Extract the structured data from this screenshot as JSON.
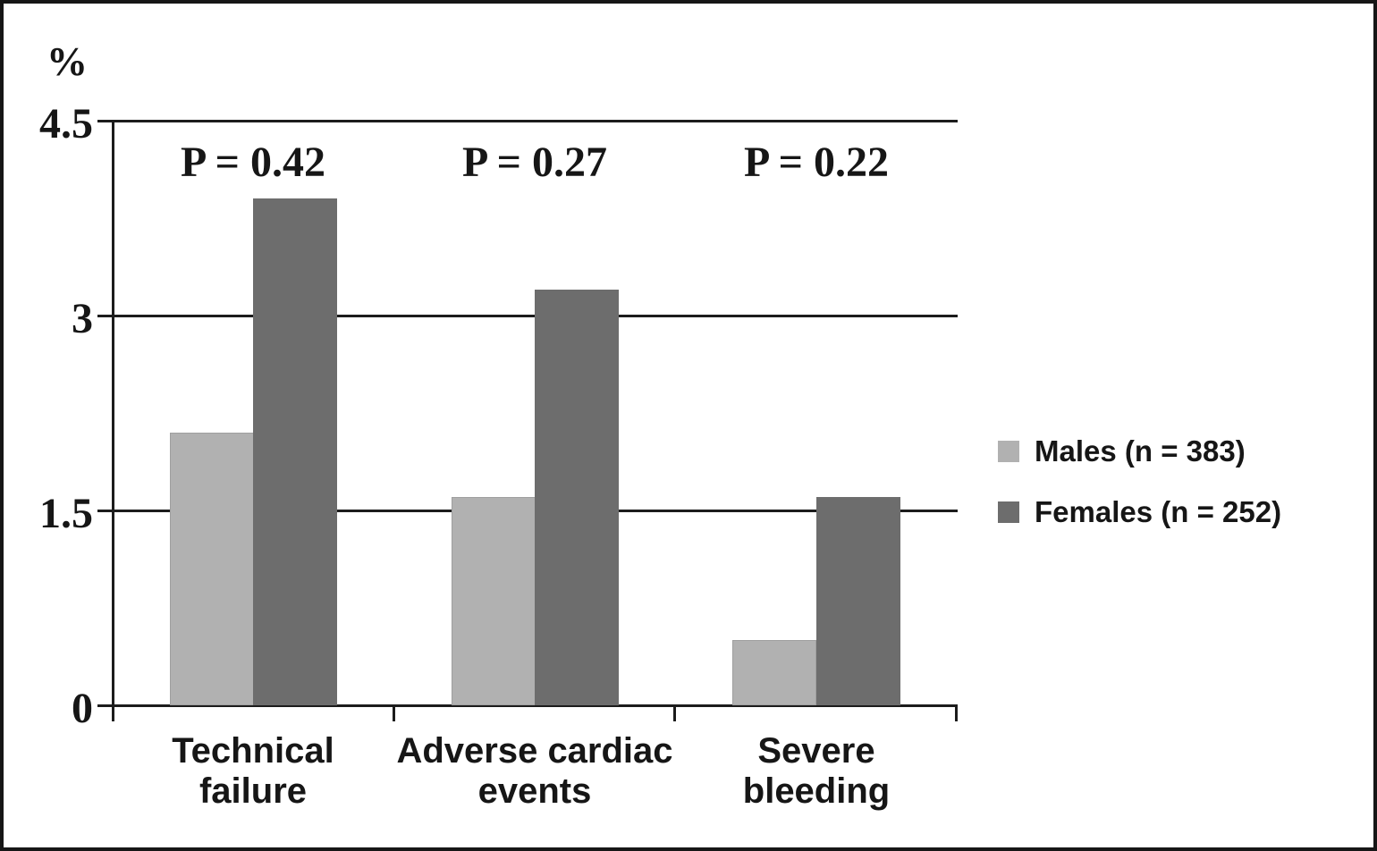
{
  "chart_data": {
    "type": "bar",
    "title": "",
    "ylabel": "%",
    "xlabel": "",
    "categories": [
      "Technical failure",
      "Adverse cardiac events",
      "Severe bleeding"
    ],
    "category_label_lines": [
      [
        "Technical",
        "failure"
      ],
      [
        "Adverse cardiac",
        "events"
      ],
      [
        "Severe",
        "bleeding"
      ]
    ],
    "series": [
      {
        "name": "Males (n = 383)",
        "values": [
          2.1,
          1.6,
          0.5
        ],
        "color": "#b1b1b1"
      },
      {
        "name": "Females (n = 252)",
        "values": [
          3.9,
          3.2,
          1.6
        ],
        "color": "#6d6d6d"
      }
    ],
    "p_value_annotations": [
      "P = 0.42",
      "P = 0.27",
      "P = 0.22"
    ],
    "y_ticks": [
      4.5,
      3,
      1.5,
      0
    ],
    "y_tick_labels": [
      "4.5",
      "3",
      "1.5",
      "0"
    ],
    "ylim": [
      0,
      4.5
    ],
    "grid": true,
    "legend_position": "right",
    "colors": {
      "axis": "#1c1c1c",
      "text": "#161616",
      "background": "#ffffff"
    }
  }
}
